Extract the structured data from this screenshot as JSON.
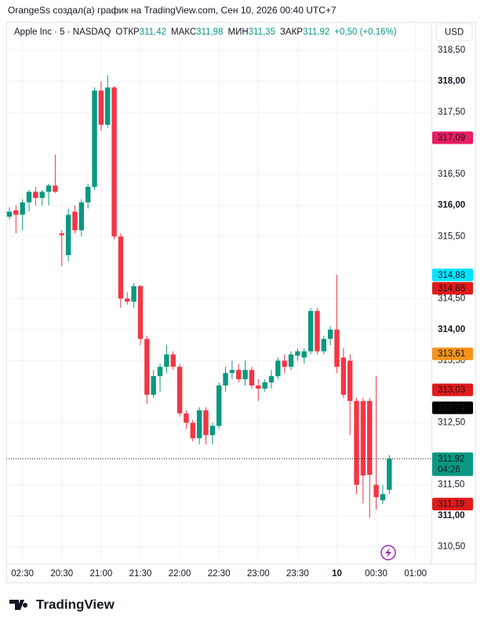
{
  "attribution": "OrangeSs создал(а) график на TradingView.com, Сен 10, 2026 00:40 UTC+7",
  "brand": "TradingView",
  "chart_data": {
    "type": "candlestick",
    "symbol": "Apple Inc · 5 · NASDAQ",
    "ohlc_legend": [
      {
        "name": "ОТКР",
        "value": 311.42,
        "label": "311,42"
      },
      {
        "name": "МАКС",
        "value": 311.98,
        "label": "311,98"
      },
      {
        "name": "МИН",
        "value": 311.35,
        "label": "311,35"
      },
      {
        "name": "ЗАКР",
        "value": 311.92,
        "label": "311,92"
      }
    ],
    "change": "+0,50 (+0,16%)",
    "currency": "USD",
    "up_color": "#089981",
    "down_color": "#f23645",
    "grid": true,
    "categories": [
      null,
      null,
      "02:30",
      null,
      null,
      null,
      null,
      null,
      "20:30",
      null,
      null,
      null,
      null,
      null,
      "21:00",
      null,
      null,
      null,
      null,
      null,
      "21:30",
      null,
      null,
      null,
      null,
      null,
      "22:00",
      null,
      null,
      null,
      null,
      null,
      "22:30",
      null,
      null,
      null,
      null,
      null,
      "23:00",
      null,
      null,
      null,
      null,
      null,
      "23:30",
      null,
      null,
      null,
      null,
      null,
      "10",
      null,
      null,
      null,
      null,
      null,
      "00:30",
      null,
      null,
      null,
      null,
      null,
      "01:00"
    ],
    "open": [
      315.82,
      315.92,
      315.85,
      316.05,
      316.22,
      316.12,
      316.22,
      316.32,
      315.55,
      315.2,
      315.9,
      315.6,
      316.05,
      316.3,
      317.85,
      317.3,
      317.9,
      315.5,
      314.5,
      314.45,
      314.7,
      313.85,
      312.95,
      313.25,
      313.4,
      313.6,
      313.4,
      312.65,
      312.5,
      312.25,
      312.7,
      312.3,
      312.45,
      313.1,
      313.3,
      313.35,
      313.2,
      313.35,
      313.1,
      313.05,
      313.15,
      313.25,
      313.5,
      313.4,
      313.58,
      313.55,
      313.65,
      314.3,
      313.65,
      313.85,
      314.0,
      313.55,
      313.5,
      312.85,
      312.85,
      312.85,
      311.5,
      311.25,
      311.42,
      null,
      null,
      null,
      null
    ],
    "high": [
      315.97,
      316.0,
      316.1,
      316.25,
      316.3,
      316.25,
      316.35,
      316.82,
      315.6,
      315.95,
      316.0,
      316.1,
      316.35,
      317.9,
      318.0,
      318.1,
      317.92,
      315.55,
      314.6,
      314.75,
      314.72,
      313.9,
      313.35,
      313.45,
      313.75,
      313.65,
      313.45,
      312.7,
      312.55,
      312.75,
      312.75,
      312.5,
      313.15,
      313.4,
      313.5,
      313.45,
      313.5,
      313.4,
      313.2,
      313.2,
      313.35,
      313.55,
      313.6,
      313.65,
      313.7,
      313.7,
      314.35,
      314.35,
      313.9,
      314.05,
      314.88,
      313.7,
      313.6,
      312.9,
      312.9,
      312.9,
      313.25,
      311.5,
      311.98,
      null,
      null,
      null,
      null
    ],
    "low": [
      315.78,
      315.55,
      315.6,
      315.9,
      316.0,
      316.0,
      316.0,
      316.2,
      315.02,
      315.1,
      315.55,
      315.5,
      315.95,
      316.25,
      317.2,
      317.25,
      315.45,
      314.35,
      314.4,
      314.35,
      313.75,
      312.8,
      312.9,
      313.0,
      313.3,
      313.35,
      312.6,
      312.4,
      312.2,
      312.15,
      312.15,
      312.15,
      312.4,
      313.0,
      313.2,
      313.15,
      313.1,
      313.05,
      312.85,
      313.0,
      313.05,
      313.2,
      313.3,
      313.35,
      313.5,
      313.45,
      313.6,
      313.6,
      313.6,
      313.75,
      313.3,
      312.9,
      312.3,
      311.35,
      311.2,
      310.97,
      311.1,
      311.19,
      311.35,
      null,
      null,
      null,
      null
    ],
    "close": [
      315.9,
      315.85,
      316.05,
      316.22,
      316.12,
      316.22,
      316.32,
      316.22,
      315.52,
      315.85,
      315.6,
      316.05,
      316.3,
      317.85,
      317.3,
      317.9,
      315.5,
      314.5,
      314.45,
      314.7,
      313.85,
      312.95,
      313.25,
      313.4,
      313.6,
      313.4,
      312.65,
      312.5,
      312.25,
      312.7,
      312.3,
      312.45,
      313.1,
      313.3,
      313.35,
      313.2,
      313.35,
      313.1,
      313.05,
      313.15,
      313.25,
      313.5,
      313.4,
      313.6,
      313.65,
      313.65,
      314.3,
      313.65,
      313.85,
      314.0,
      313.4,
      312.95,
      312.85,
      311.5,
      311.65,
      311.66,
      311.3,
      311.35,
      311.92,
      null,
      null,
      null,
      null
    ],
    "ylim": [
      310.23,
      318.955
    ],
    "yticks": [
      {
        "value": 318.5,
        "label": "318,50"
      },
      {
        "value": 318,
        "label": "318,00"
      },
      {
        "value": 317.5,
        "label": "317,50"
      },
      {
        "value": 316.5,
        "label": "316,50"
      },
      {
        "value": 316,
        "label": "316,00"
      },
      {
        "value": 315.5,
        "label": "315,50"
      },
      {
        "value": 314.5,
        "label": "314,50"
      },
      {
        "value": 314,
        "label": "314,00"
      },
      {
        "value": 313.5,
        "label": "313,50"
      },
      {
        "value": 312.5,
        "label": "312,50"
      },
      {
        "value": 311.5,
        "label": "311,50"
      },
      {
        "value": 311,
        "label": "311,00"
      },
      {
        "value": 310.5,
        "label": "310,50"
      }
    ],
    "price_labels": [
      {
        "value": 317.09,
        "label": "317,09",
        "color": "#e91e63",
        "text_color": "#ffffff"
      },
      {
        "value": 314.88,
        "label": "314,88",
        "color": "#00e5ff",
        "text_color": "#131722"
      },
      {
        "value": 314.86,
        "label": "314,86",
        "color": "#e01b1b",
        "text_color": "#ffffff"
      },
      {
        "value": 313.61,
        "label": "313,61",
        "color": "#f7931a",
        "text_color": "#ffffff"
      },
      {
        "value": 313.03,
        "label": "313,03",
        "color": "#e01b1b",
        "text_color": "#ffffff"
      },
      {
        "value": 312.74,
        "label": "312,74",
        "color": "#000000",
        "text_color": "#ffffff"
      },
      {
        "value": 311.92,
        "label": "311,92",
        "color": "#089981",
        "text_color": "#ffffff",
        "countdown": "04:26"
      },
      {
        "value": 311.19,
        "label": "311,19",
        "color": "#e01b1b",
        "text_color": "#ffffff"
      }
    ]
  }
}
